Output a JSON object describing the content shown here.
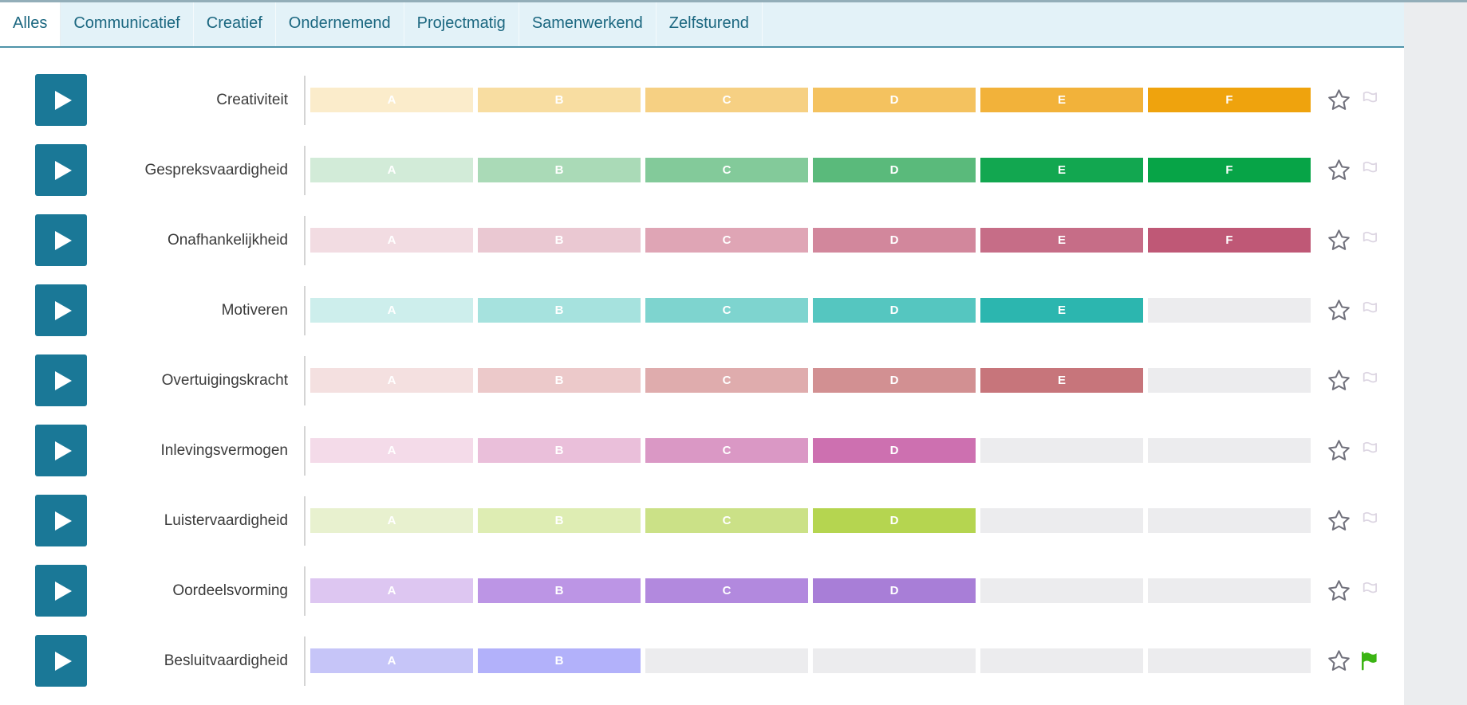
{
  "tabs": [
    {
      "label": "Alles",
      "active": true
    },
    {
      "label": "Communicatief",
      "active": false
    },
    {
      "label": "Creatief",
      "active": false
    },
    {
      "label": "Ondernemend",
      "active": false
    },
    {
      "label": "Projectmatig",
      "active": false
    },
    {
      "label": "Samenwerkend",
      "active": false
    },
    {
      "label": "Zelfsturend",
      "active": false
    }
  ],
  "levels": [
    "A",
    "B",
    "C",
    "D",
    "E",
    "F"
  ],
  "rows": [
    {
      "label": "Creativiteit",
      "filled": 6,
      "colors": [
        "#fbeccb",
        "#f8dda1",
        "#f6d083",
        "#f4c25f",
        "#f2b23a",
        "#efa30d"
      ],
      "starred": false,
      "flagged": false
    },
    {
      "label": "Gespreksvaardigheid",
      "filled": 6,
      "colors": [
        "#d2ebd8",
        "#aadab7",
        "#83ca9a",
        "#5aba7b",
        "#12a750",
        "#07a447"
      ],
      "starred": false,
      "flagged": false
    },
    {
      "label": "Onafhankelijkheid",
      "filled": 6,
      "colors": [
        "#f2dce2",
        "#eac8d2",
        "#dfa5b5",
        "#d2879c",
        "#c66d87",
        "#bf5876"
      ],
      "starred": false,
      "flagged": false
    },
    {
      "label": "Motiveren",
      "filled": 5,
      "colors": [
        "#cdeeec",
        "#a6e2de",
        "#7ed4cf",
        "#55c6c0",
        "#2cb6af"
      ],
      "starred": false,
      "flagged": false
    },
    {
      "label": "Overtuigingskracht",
      "filled": 5,
      "colors": [
        "#f4e0e0",
        "#ecc9ca",
        "#dfacad",
        "#d29092",
        "#c7757b"
      ],
      "starred": false,
      "flagged": false
    },
    {
      "label": "Inlevingsvermogen",
      "filled": 4,
      "colors": [
        "#f4dbe9",
        "#eabfda",
        "#da98c5",
        "#cd70b0"
      ],
      "starred": false,
      "flagged": false
    },
    {
      "label": "Luistervaardigheid",
      "filled": 4,
      "colors": [
        "#e8f1cf",
        "#deedb3",
        "#cbe187",
        "#b5d550"
      ],
      "starred": false,
      "flagged": false
    },
    {
      "label": "Oordeelsvorming",
      "filled": 4,
      "colors": [
        "#ddc6f1",
        "#bc95e5",
        "#b289de",
        "#a87ed7"
      ],
      "starred": false,
      "flagged": false
    },
    {
      "label": "Besluitvaardigheid",
      "filled": 2,
      "colors": [
        "#c6c5f8",
        "#b2b1fa"
      ],
      "starred": false,
      "flagged": true
    }
  ],
  "icons": {
    "play": "play-icon",
    "star": "star-icon",
    "flag": "flag-icon"
  },
  "ui_colors": {
    "play_button": "#1a7897",
    "tab_bar_bg": "#e3f2f8",
    "tab_text": "#1b6780",
    "tab_border": "#4e93a9",
    "empty_segment": "#ececee",
    "flag_active": "#3bb413",
    "star_stroke": "#71717c",
    "flag_inactive_stroke": "#dcd5e2",
    "gutter_bg": "#ebedef",
    "top_border": "#93aeb9"
  }
}
